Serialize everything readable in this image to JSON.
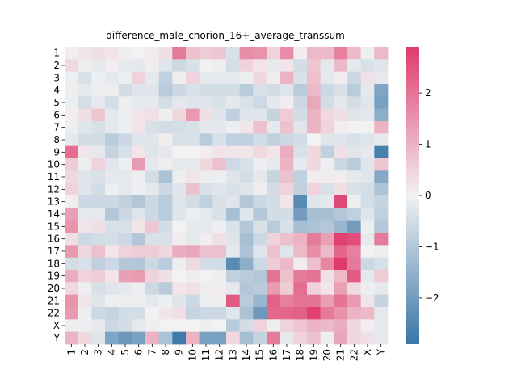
{
  "chart_data": {
    "type": "heatmap",
    "title": "difference_male_chorion_16+_average_transsum",
    "xlabel": "",
    "ylabel": "",
    "categories": [
      "1",
      "2",
      "3",
      "4",
      "5",
      "6",
      "7",
      "8",
      "9",
      "10",
      "11",
      "12",
      "13",
      "14",
      "15",
      "16",
      "17",
      "18",
      "19",
      "20",
      "21",
      "22",
      "X",
      "Y"
    ],
    "colormap": {
      "low": "#3a76a8",
      "mid": "#f2f2f2",
      "high": "#de3b6b"
    },
    "vmin": -2.9,
    "vmax": 2.9,
    "colorbar_ticks": [
      -2,
      -1,
      0,
      1,
      2
    ],
    "values": [
      [
        0.1,
        0.2,
        0.3,
        0.2,
        0.1,
        0.0,
        0.1,
        0.3,
        1.9,
        0.8,
        0.6,
        0.7,
        -0.4,
        1.6,
        1.5,
        0.5,
        1.6,
        0.1,
        0.9,
        0.9,
        1.8,
        0.9,
        -0.1,
        0.9
      ],
      [
        0.4,
        0.1,
        -0.2,
        0.1,
        -0.2,
        -0.2,
        0.1,
        -0.3,
        -0.6,
        -0.4,
        0.0,
        0.1,
        -0.5,
        0.5,
        0.2,
        -0.2,
        0.2,
        -0.5,
        0.7,
        -0.2,
        0.9,
        -0.2,
        -0.4,
        -0.3
      ],
      [
        -0.1,
        -0.4,
        -0.1,
        -0.2,
        -0.1,
        0.5,
        -0.2,
        -0.8,
        -0.1,
        0.5,
        -0.2,
        -0.2,
        -0.2,
        -0.1,
        0.4,
        -0.1,
        1.0,
        -0.4,
        0.8,
        -0.2,
        0.1,
        -0.6,
        0.3,
        -0.2
      ],
      [
        -0.1,
        -0.2,
        -0.1,
        -0.1,
        -0.5,
        -0.3,
        -0.3,
        -0.9,
        -0.6,
        -0.4,
        -0.5,
        -0.5,
        -0.5,
        -0.9,
        -0.4,
        -0.5,
        -0.3,
        -0.9,
        0.9,
        -0.6,
        -0.4,
        -0.9,
        -0.2,
        -1.8
      ],
      [
        -0.1,
        -0.5,
        -0.2,
        -0.5,
        -0.1,
        -0.2,
        -0.2,
        -0.5,
        -0.2,
        -0.3,
        -0.3,
        -0.4,
        -0.2,
        -0.4,
        -0.6,
        -0.2,
        0.1,
        -0.6,
        1.2,
        -0.5,
        -0.2,
        -0.5,
        -0.3,
        -1.9
      ],
      [
        0.1,
        0.3,
        0.7,
        -0.2,
        -0.1,
        0.2,
        0.3,
        -0.1,
        0.4,
        1.4,
        0.3,
        -0.3,
        -0.8,
        -0.3,
        -0.3,
        -0.7,
        0.6,
        -0.5,
        1.0,
        0.4,
        0.3,
        -0.3,
        -0.2,
        -1.6
      ],
      [
        -0.1,
        -0.3,
        -0.4,
        -0.2,
        -0.1,
        0.2,
        -0.4,
        -0.5,
        -0.5,
        -0.4,
        -0.2,
        -0.2,
        -0.1,
        0.2,
        0.8,
        -0.2,
        0.8,
        -0.3,
        1.0,
        0.5,
        0.1,
        0.0,
        0.0,
        1.0
      ],
      [
        -0.2,
        -0.5,
        -0.5,
        -0.9,
        -0.6,
        -0.3,
        -0.3,
        0.1,
        -0.4,
        -0.4,
        -0.9,
        -0.4,
        -0.8,
        -0.8,
        -0.5,
        -0.8,
        -0.6,
        -0.5,
        0.0,
        -0.3,
        -0.3,
        -0.4,
        -0.3,
        -0.2
      ],
      [
        2.1,
        0.2,
        -0.2,
        -0.7,
        -0.4,
        0.2,
        -0.3,
        -0.2,
        0.0,
        0.0,
        0.1,
        0.2,
        0.2,
        0.2,
        0.4,
        0.2,
        1.1,
        -0.4,
        0.4,
        -0.8,
        0.3,
        -0.3,
        -0.2,
        -2.7
      ],
      [
        0.6,
        -0.1,
        0.5,
        -0.3,
        -0.1,
        1.4,
        -0.2,
        0.1,
        -0.2,
        -0.2,
        0.4,
        0.8,
        -0.6,
        -0.4,
        -0.1,
        -0.2,
        1.0,
        -0.2,
        0.4,
        -0.1,
        -0.6,
        -0.9,
        -0.3,
        0.7
      ],
      [
        0.4,
        -0.3,
        -0.4,
        -0.2,
        -0.2,
        -0.1,
        -0.5,
        -1.1,
        -0.1,
        0.2,
        -0.1,
        -0.1,
        -0.3,
        -0.5,
        -0.2,
        -0.7,
        0.8,
        -0.8,
        0.1,
        0.1,
        0.1,
        -0.2,
        -0.3,
        -1.7
      ],
      [
        0.5,
        -0.3,
        -0.5,
        -0.1,
        -0.2,
        -0.1,
        -0.2,
        -0.6,
        -0.3,
        0.8,
        -0.4,
        -0.3,
        -0.4,
        -0.3,
        0.1,
        -0.5,
        0.5,
        -0.8,
        0.5,
        -0.4,
        0.3,
        -0.4,
        -0.5,
        -1.1
      ],
      [
        0.1,
        -0.6,
        -0.6,
        -0.6,
        -0.8,
        -1.0,
        -0.6,
        -0.9,
        -0.3,
        -0.5,
        -0.8,
        -0.4,
        -0.3,
        -1.0,
        -0.6,
        -0.5,
        0.2,
        -2.4,
        -0.3,
        -0.2,
        2.7,
        -0.1,
        -0.5,
        -0.7
      ],
      [
        1.3,
        -0.2,
        -0.2,
        -1.0,
        -0.6,
        -0.3,
        -0.6,
        -0.9,
        -0.3,
        -0.1,
        -0.2,
        -0.4,
        -1.2,
        -0.3,
        -1.0,
        -0.5,
        -0.5,
        -2.0,
        -1.2,
        -1.2,
        -1.0,
        -0.8,
        -0.3,
        -0.8
      ],
      [
        1.5,
        0.2,
        0.3,
        -0.4,
        -0.4,
        0.2,
        0.7,
        -0.5,
        0.0,
        -0.2,
        -0.2,
        -0.1,
        -0.4,
        -1.0,
        -0.4,
        -0.9,
        -0.4,
        -1.2,
        -1.1,
        -1.0,
        -1.4,
        -2.0,
        -0.1,
        -1.0
      ],
      [
        0.3,
        -0.6,
        -0.5,
        -0.5,
        -0.6,
        -1.0,
        -0.4,
        -0.4,
        0.1,
        -0.2,
        0.1,
        0.3,
        -0.3,
        -1.2,
        -0.6,
        0.5,
        0.8,
        1.0,
        1.9,
        1.3,
        2.8,
        2.6,
        -0.2,
        1.9
      ],
      [
        1.4,
        0.4,
        0.8,
        0.2,
        0.5,
        0.6,
        0.6,
        0.4,
        1.1,
        1.2,
        0.8,
        0.8,
        -0.2,
        -1.1,
        -0.3,
        0.8,
        -0.3,
        0.9,
        1.6,
        0.9,
        2.2,
        1.8,
        0.0,
        -0.1
      ],
      [
        -0.5,
        -0.4,
        -0.8,
        -0.6,
        -1.0,
        -1.0,
        -0.6,
        -0.9,
        -0.1,
        0.4,
        -0.5,
        -0.5,
        -2.4,
        -1.6,
        -0.6,
        0.6,
        0.9,
        0.1,
        0.8,
        1.7,
        2.9,
        1.9,
        -0.6,
        -0.4
      ],
      [
        1.1,
        0.5,
        0.6,
        0.2,
        1.3,
        1.4,
        0.5,
        0.3,
        0.0,
        0.1,
        0.0,
        -0.1,
        -0.8,
        -0.9,
        -1.0,
        2.0,
        0.8,
        1.9,
        2.0,
        0.3,
        0.9,
        2.4,
        -0.2,
        0.6
      ],
      [
        0.4,
        -0.1,
        -0.4,
        -0.3,
        -0.2,
        -0.1,
        -0.6,
        -0.9,
        0.2,
        0.3,
        0.1,
        0.1,
        -0.2,
        -1.0,
        -0.9,
        1.4,
        0.6,
        2.1,
        0.5,
        0.2,
        1.3,
        0.4,
        -0.1,
        -0.2
      ],
      [
        1.5,
        0.2,
        -0.3,
        -0.1,
        -0.1,
        -0.1,
        -0.2,
        -0.1,
        -0.3,
        -0.6,
        -0.1,
        -0.1,
        2.4,
        -0.9,
        -1.4,
        2.3,
        1.8,
        2.0,
        2.0,
        1.3,
        2.0,
        1.4,
        0.2,
        -0.7
      ],
      [
        1.4,
        -0.1,
        -0.6,
        -0.7,
        -0.5,
        -0.5,
        0.0,
        0.2,
        0.3,
        -0.7,
        -0.6,
        -0.6,
        -0.3,
        -1.1,
        -2.1,
        2.2,
        2.2,
        2.3,
        2.8,
        1.9,
        1.5,
        1.0,
        0.9,
        -0.2
      ],
      [
        -0.1,
        -0.1,
        -0.2,
        -0.6,
        -0.5,
        -0.2,
        -0.1,
        0.0,
        0.0,
        0.0,
        -0.1,
        0.0,
        -0.9,
        -0.5,
        0.5,
        -0.1,
        0.5,
        0.7,
        1.0,
        0.9,
        1.1,
        0.4,
        0.1,
        -0.2
      ],
      [
        1.0,
        0.4,
        -0.3,
        -1.8,
        -2.1,
        -1.9,
        1.0,
        -1.1,
        -2.8,
        1.0,
        -1.9,
        -1.9,
        0.4,
        -1.2,
        -0.7,
        1.9,
        -0.2,
        0.5,
        0.8,
        -0.1,
        1.2,
        0.4,
        0.3,
        -0.2
      ]
    ]
  }
}
